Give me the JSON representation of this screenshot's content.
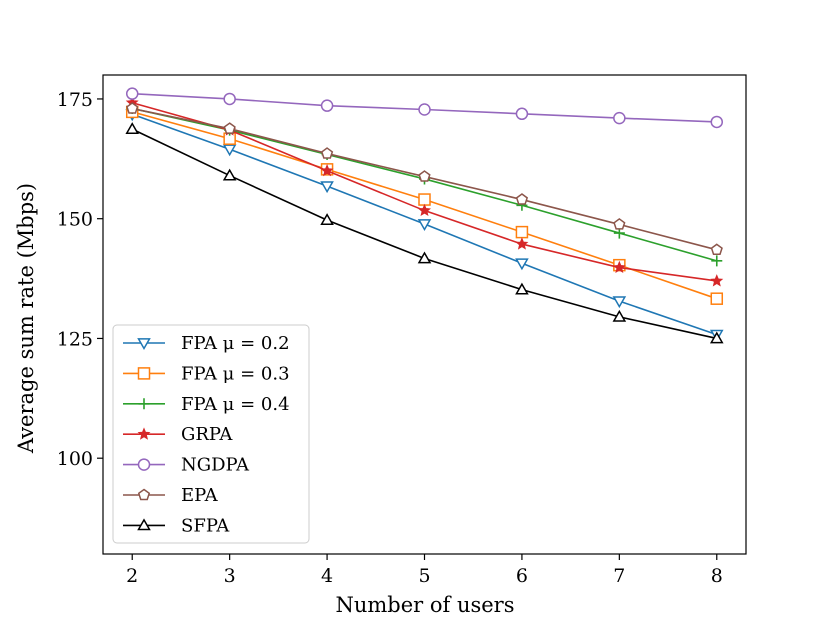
{
  "chart_data": {
    "type": "line",
    "title": "",
    "xlabel": "Number of users",
    "ylabel": "Average sum rate (Mbps)",
    "x": [
      2,
      3,
      4,
      5,
      6,
      7,
      8
    ],
    "xlim": [
      1.7,
      8.3
    ],
    "ylim": [
      80,
      180
    ],
    "xticks": [
      2,
      3,
      4,
      5,
      6,
      7,
      8
    ],
    "yticks": [
      100,
      125,
      150,
      175
    ],
    "grid": false,
    "legend_position": "lower-left",
    "series": [
      {
        "name": "FPA μ = 0.2",
        "color": "#1f77b4",
        "marker": "triangle-down",
        "values": [
          171.8,
          164.5,
          156.8,
          148.9,
          140.7,
          132.8,
          125.8
        ]
      },
      {
        "name": "FPA μ = 0.3",
        "color": "#ff7f0e",
        "marker": "square",
        "values": [
          172.3,
          166.7,
          160.3,
          154.0,
          147.2,
          140.3,
          133.3
        ]
      },
      {
        "name": "FPA μ = 0.4",
        "color": "#2ca02c",
        "marker": "plus",
        "values": [
          173.0,
          168.5,
          163.4,
          158.3,
          152.8,
          147.0,
          141.2
        ]
      },
      {
        "name": "GRPA",
        "color": "#d62728",
        "marker": "star",
        "values": [
          174.2,
          168.5,
          160.0,
          151.7,
          144.7,
          139.8,
          137.0
        ]
      },
      {
        "name": "NGDPA",
        "color": "#9467bd",
        "marker": "circle",
        "values": [
          176.1,
          175.0,
          173.6,
          172.8,
          171.9,
          171.0,
          170.2
        ]
      },
      {
        "name": "EPA",
        "color": "#8c564b",
        "marker": "pentagon",
        "values": [
          173.0,
          168.8,
          163.6,
          158.8,
          154.0,
          148.8,
          143.5
        ]
      },
      {
        "name": "SFPA",
        "color": "#000000",
        "marker": "triangle-up",
        "values": [
          168.7,
          159.0,
          149.7,
          141.7,
          135.2,
          129.5,
          125.0
        ]
      }
    ]
  }
}
